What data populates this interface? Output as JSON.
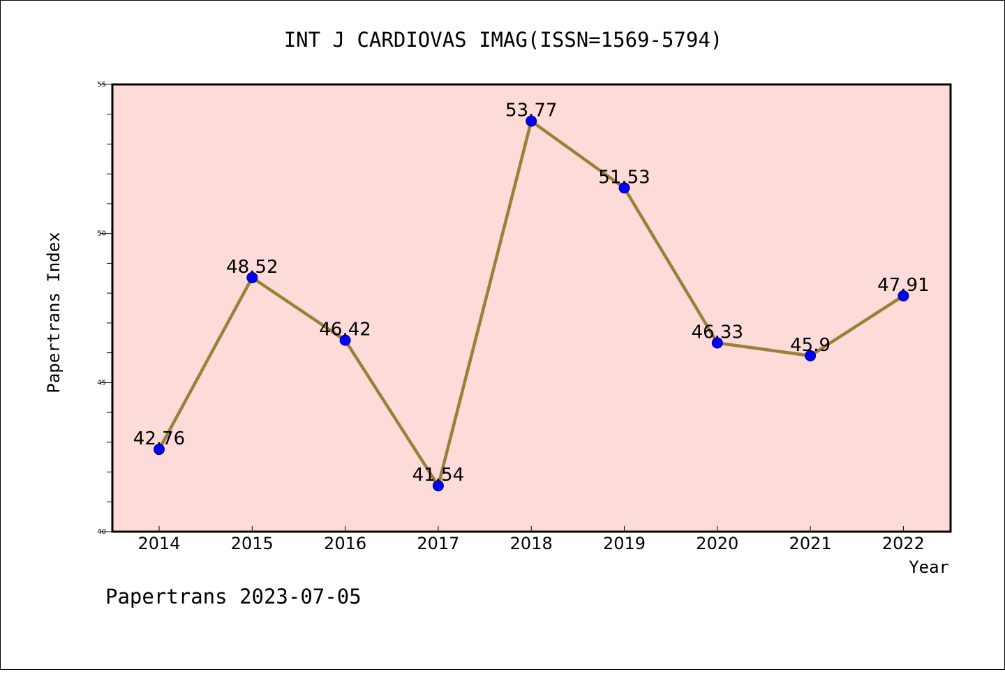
{
  "chart_data": {
    "type": "line",
    "title": "INT J CARDIOVAS IMAG(ISSN=1569-5794)",
    "xlabel": "Year",
    "ylabel": "Papertrans Index",
    "categories": [
      "2014",
      "2015",
      "2016",
      "2017",
      "2018",
      "2019",
      "2020",
      "2021",
      "2022"
    ],
    "values": [
      42.76,
      48.52,
      46.42,
      41.54,
      53.77,
      51.53,
      46.33,
      45.9,
      47.91
    ],
    "value_labels": [
      "42.76",
      "48.52",
      "46.42",
      "41.54",
      "53.77",
      "51.53",
      "46.33",
      "45.9",
      "47.91"
    ],
    "ylim": [
      40,
      55
    ],
    "y_ticks": [
      40,
      45,
      50,
      55
    ],
    "y_tick_labels": [
      "40",
      "45",
      "50",
      "55"
    ],
    "grid": false,
    "legend": "none",
    "colors": {
      "plot_background": "#fddbd8",
      "line": "#9a8038",
      "marker": "#0000ff"
    }
  },
  "footer": {
    "note": "Papertrans 2023-07-05"
  }
}
